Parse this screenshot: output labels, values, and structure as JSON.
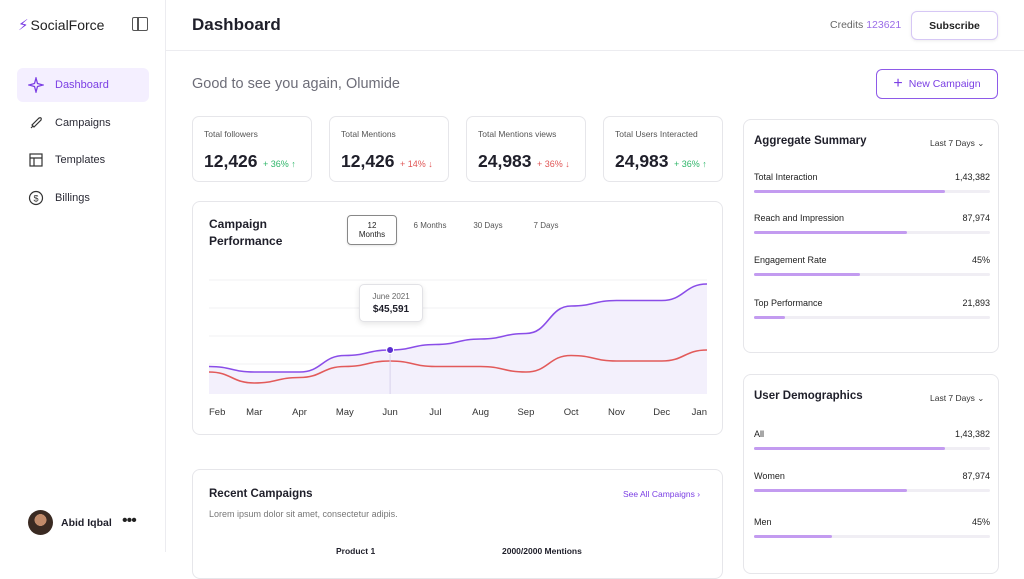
{
  "app": {
    "logo_text": "SocialForce"
  },
  "sidebar": {
    "items": [
      {
        "label": "Dashboard",
        "active": true
      },
      {
        "label": "Campaigns"
      },
      {
        "label": "Templates"
      },
      {
        "label": "Billings"
      }
    ],
    "user_name": "Abid Iqbal"
  },
  "header": {
    "title": "Dashboard",
    "credits_label": "Credits",
    "credits_value": "123621",
    "subscribe_label": "Subscribe"
  },
  "main": {
    "greeting": "Good to see you again, Olumide",
    "new_campaign_label": "New Campaign",
    "stats": [
      {
        "label": "Total followers",
        "value": "12,426",
        "delta": "+ 36% ↑",
        "trend": "up"
      },
      {
        "label": "Total Mentions",
        "value": "12,426",
        "delta": "+ 14% ↓",
        "trend": "down"
      },
      {
        "label": "Total Mentions views",
        "value": "24,983",
        "delta": "+ 36% ↓",
        "trend": "down"
      },
      {
        "label": "Total Users Interacted",
        "value": "24,983",
        "delta": "+ 36% ↑",
        "trend": "up"
      }
    ],
    "performance": {
      "title": "Campaign Performance",
      "tabs": [
        "12 Months",
        "6 Months",
        "30 Days",
        "7 Days"
      ],
      "tooltip_month": "June 2021",
      "tooltip_value": "$45,591"
    },
    "recent": {
      "title": "Recent Campaigns",
      "subtitle": "Lorem ipsum dolor sit amet, consectetur adipis.",
      "see_all": "See All Campaigns",
      "row_name": "Product 1",
      "row_mentions": "2000/2000 Mentions"
    }
  },
  "aggregate": {
    "title": "Aggregate Summary",
    "range": "Last 7 Days",
    "metrics": [
      {
        "label": "Total Interaction",
        "value": "1,43,382",
        "fill": 0.81
      },
      {
        "label": "Reach and Impression",
        "value": "87,974",
        "fill": 0.65
      },
      {
        "label": "Engagement Rate",
        "value": "45%",
        "fill": 0.45
      },
      {
        "label": "Top Performance",
        "value": "21,893",
        "fill": 0.13
      }
    ]
  },
  "demographics": {
    "title": "User Demographics",
    "range": "Last 7 Days",
    "metrics": [
      {
        "label": "All",
        "value": "1,43,382",
        "fill": 0.81
      },
      {
        "label": "Women",
        "value": "87,974",
        "fill": 0.65
      },
      {
        "label": "Men",
        "value": "45%",
        "fill": 0.33
      }
    ]
  },
  "colors": {
    "accent": "#7b3fe4",
    "series_purple": "#8a4de8",
    "series_red": "#e25a5a"
  },
  "chart_data": {
    "type": "line",
    "categories": [
      "Feb",
      "Mar",
      "Apr",
      "May",
      "Jun",
      "Jul",
      "Aug",
      "Sep",
      "Oct",
      "Nov",
      "Dec",
      "Jan"
    ],
    "series": [
      {
        "values": [
          3,
          2,
          2,
          5,
          6,
          7,
          8,
          9,
          14,
          15,
          15,
          18
        ]
      },
      {
        "values": [
          2,
          0,
          1,
          3,
          4,
          3,
          3,
          2,
          5,
          4,
          4,
          6
        ]
      }
    ],
    "ylim": [
      -2,
      22
    ]
  }
}
